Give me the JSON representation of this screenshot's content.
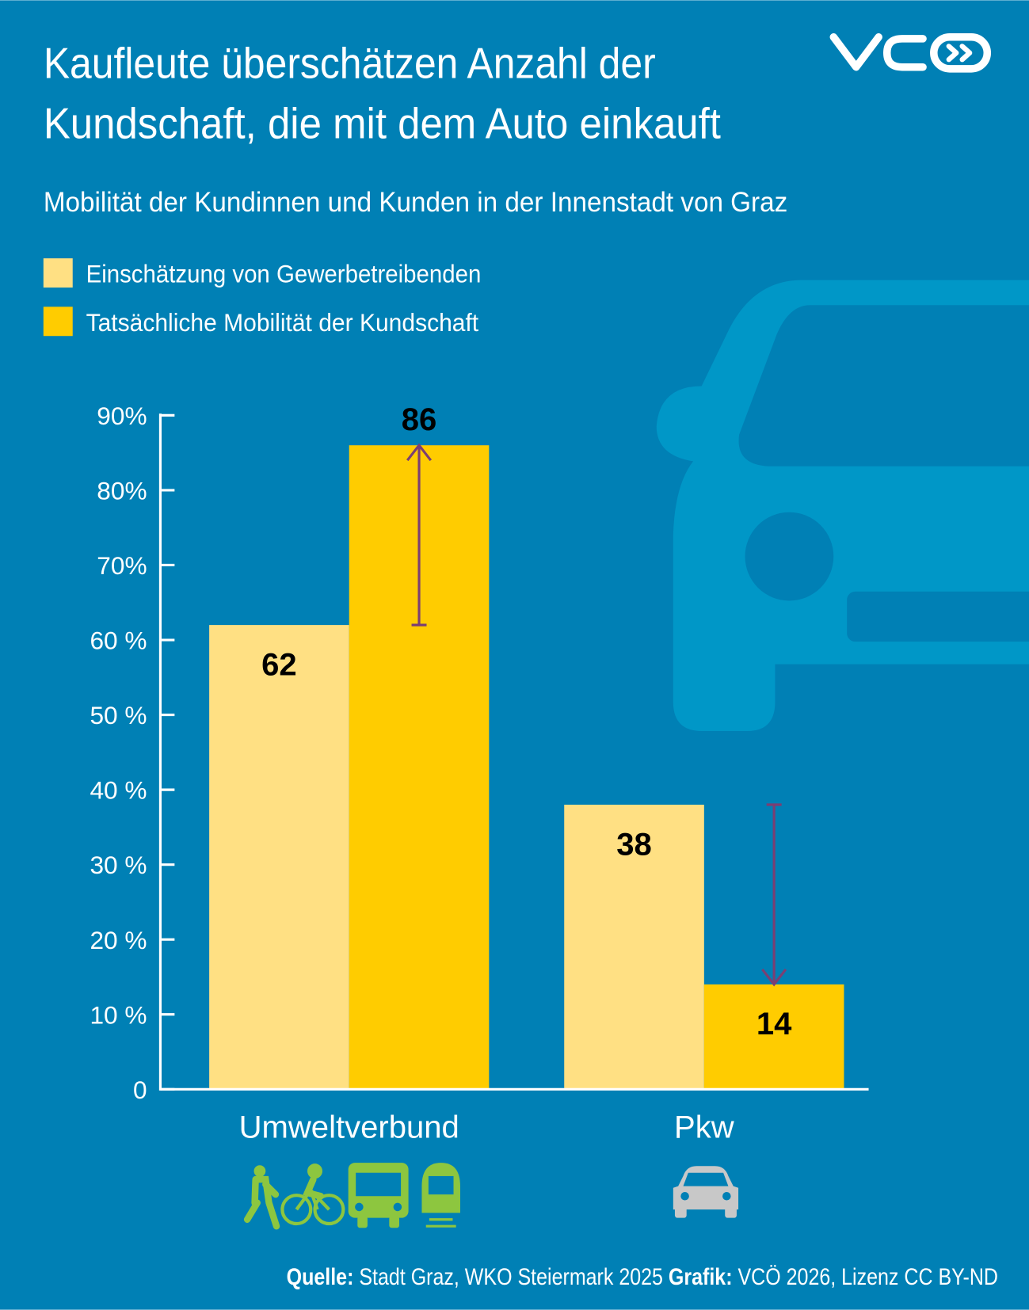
{
  "chart_data": {
    "type": "bar",
    "title": [
      "Kaufleute überschätzen Anzahl der",
      "Kundschaft, die mit dem Auto einkauft"
    ],
    "subtitle": "Mobilität der Kundinnen und Kunden in der Innenstadt von Graz",
    "categories": [
      "Umweltverbund",
      "Pkw"
    ],
    "series": [
      {
        "name": "Einschätzung von Gewerbetreibenden",
        "color": "#ffe083",
        "values": [
          62,
          38
        ]
      },
      {
        "name": "Tatsächliche Mobilität der Kundschaft",
        "color": "#ffcc00",
        "values": [
          86,
          14
        ]
      }
    ],
    "ylim": [
      0,
      90
    ],
    "yticks": [
      0,
      {
        "value": 10,
        "label": "10 %"
      },
      {
        "value": 20,
        "label": "20 %"
      },
      {
        "value": 30,
        "label": "30 %"
      },
      {
        "value": 40,
        "label": "40 %"
      },
      {
        "value": 50,
        "label": "50 %"
      },
      {
        "value": 60,
        "label": "60 %"
      },
      {
        "value": 70,
        "label": "70%"
      },
      {
        "value": 80,
        "label": "80%"
      },
      {
        "value": 90,
        "label": "90%"
      }
    ],
    "arrow_color": "#7b3f73",
    "source": [
      {
        "text": "Quelle:",
        "bold": true
      },
      {
        "text": " Stadt Graz, WKO Steiermark 2025 ",
        "bold": false
      },
      {
        "text": "Grafik:",
        "bold": true
      },
      {
        "text": " VCÖ 2026, Lizenz CC BY-ND",
        "bold": false
      }
    ]
  }
}
